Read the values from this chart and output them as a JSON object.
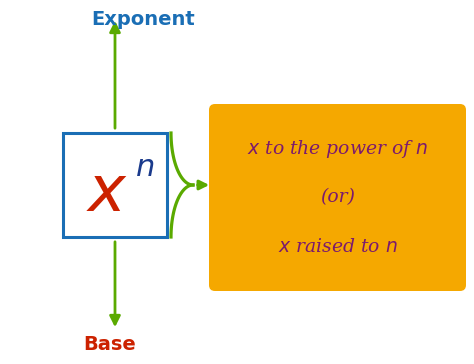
{
  "bg_color": "#ffffff",
  "exponent_label": "Exponent",
  "exponent_color": "#1a6eb5",
  "base_label": "Base",
  "base_color": "#cc2200",
  "x_color": "#cc2200",
  "n_color": "#1a3a8c",
  "arrow_color": "#5aaa00",
  "box_color": "#1a6eb5",
  "brace_color": "#5aaa00",
  "orange_box_color": "#f5a800",
  "orange_box_text_color": "#7b1a6e",
  "figsize": [
    4.74,
    3.64
  ],
  "dpi": 100
}
